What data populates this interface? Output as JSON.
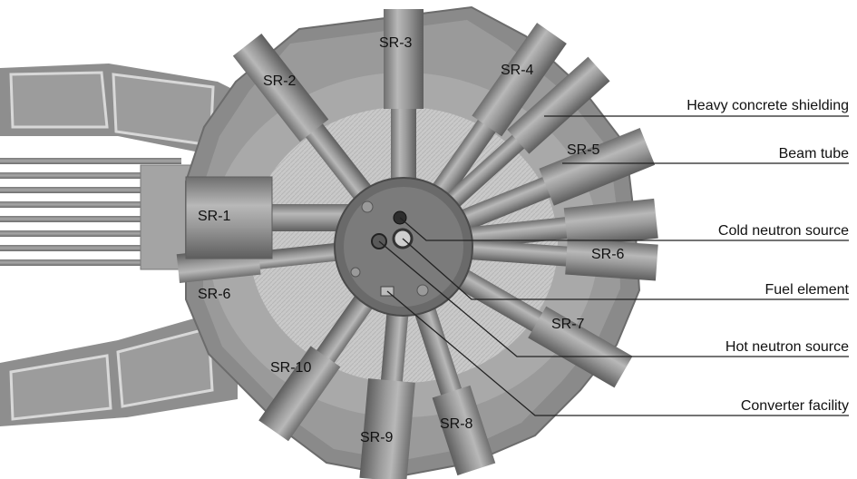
{
  "diagram": {
    "beam_tubes": [
      "SR-1",
      "SR-2",
      "SR-3",
      "SR-4",
      "SR-5",
      "SR-6",
      "SR-6",
      "SR-7",
      "SR-8",
      "SR-9",
      "SR-10"
    ],
    "callouts": [
      "Heavy concrete shielding",
      "Beam tube",
      "Cold neutron source",
      "Fuel element",
      "Hot neutron source",
      "Converter facility"
    ]
  }
}
